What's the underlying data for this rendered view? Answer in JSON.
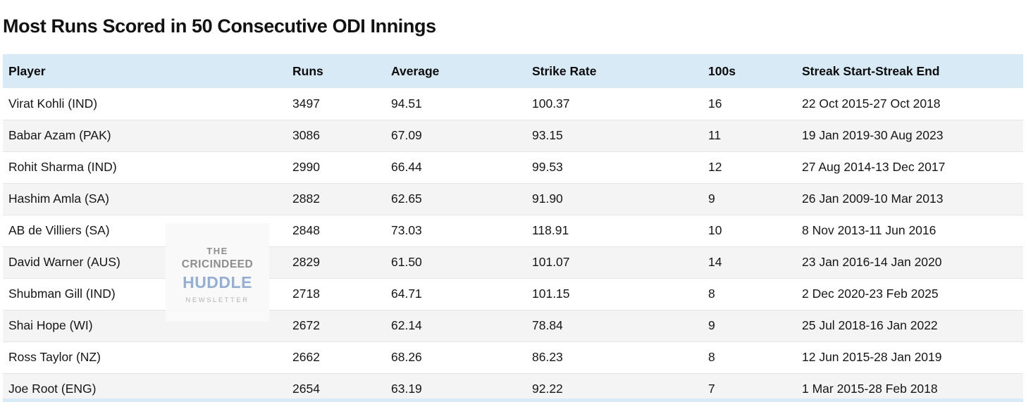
{
  "chart_data": {
    "type": "table",
    "title": "Most Runs Scored in 50 Consecutive ODI Innings",
    "columns": [
      "Player",
      "Runs",
      "Average",
      "Strike Rate",
      "100s",
      "Streak Start-Streak End"
    ],
    "rows": [
      [
        "Virat Kohli (IND)",
        "3497",
        "94.51",
        "100.37",
        "16",
        "22 Oct 2015-27 Oct 2018"
      ],
      [
        "Babar Azam (PAK)",
        "3086",
        "67.09",
        "93.15",
        "11",
        "19 Jan 2019-30 Aug 2023"
      ],
      [
        "Rohit Sharma (IND)",
        "2990",
        "66.44",
        "99.53",
        "12",
        "27 Aug 2014-13 Dec 2017"
      ],
      [
        "Hashim Amla (SA)",
        "2882",
        "62.65",
        "91.90",
        "9",
        "26 Jan 2009-10 Mar 2013"
      ],
      [
        "AB de Villiers (SA)",
        "2848",
        "73.03",
        "118.91",
        "10",
        "8 Nov 2013-11 Jun 2016"
      ],
      [
        "David Warner (AUS)",
        "2829",
        "61.50",
        "101.07",
        "14",
        "23 Jan 2016-14 Jan 2020"
      ],
      [
        "Shubman Gill (IND)",
        "2718",
        "64.71",
        "101.15",
        "8",
        "2 Dec 2020-23 Feb 2025"
      ],
      [
        "Shai Hope (WI)",
        "2672",
        "62.14",
        "78.84",
        "9",
        "25 Jul 2018-16 Jan 2022"
      ],
      [
        "Ross Taylor (NZ)",
        "2662",
        "68.26",
        "86.23",
        "8",
        "12 Jun 2015-28 Jan 2019"
      ],
      [
        "Joe Root (ENG)",
        "2654",
        "63.19",
        "92.22",
        "7",
        "1 Mar 2015-28 Feb 2018"
      ]
    ],
    "layout_hints": {
      "alternating_row_shading": true,
      "header_shaded": true,
      "all_columns_left_aligned": true
    }
  },
  "watermark": {
    "line1": "THE",
    "line2": "CRICINDEED",
    "line3": "HUDDLE",
    "line4": "NEWSLETTER"
  },
  "colors": {
    "title_color": "#121212",
    "body_text": "#161616",
    "header_bg": "#d7eaf6",
    "alt_row_bg": "#f4f4f4",
    "row_border": "#e5e5e5",
    "watermark_bg": "rgba(248,248,248,0.92)",
    "watermark_gray": "#8d8d8d",
    "watermark_blue": "#94afd3",
    "watermark_light_gray": "#b3b3b3"
  }
}
